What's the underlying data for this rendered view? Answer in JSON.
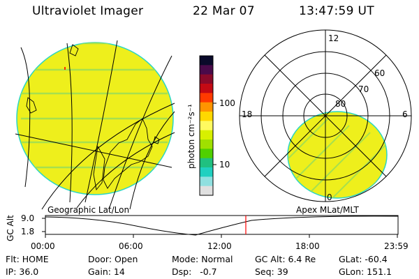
{
  "header": {
    "instrument": "Ultraviolet Imager",
    "date": "22 Mar 07",
    "time": "13:47:59 UT"
  },
  "colorbar": {
    "unit_label": "photon cm⁻²s⁻¹",
    "tick_labels": [
      "100",
      "10"
    ],
    "colors": [
      "#0a0a2a",
      "#4a0a4a",
      "#8a0a2a",
      "#c40a14",
      "#ff3a00",
      "#ff9400",
      "#ffd800",
      "#fffa60",
      "#d8f000",
      "#a0e000",
      "#50d000",
      "#20c080",
      "#20d0c0",
      "#90e0e0",
      "#e0e0e0"
    ]
  },
  "geo_map": {
    "fill_color": "#eeef1c",
    "limb_color": "#2ad6c4",
    "stripe_color": "#a6e04e"
  },
  "polar_plot": {
    "mlt_labels": [
      "12",
      "18",
      "6",
      "0"
    ],
    "lat_labels": [
      "60",
      "70",
      "80"
    ]
  },
  "timeline": {
    "left_title": "Geographic Lat/Lon",
    "right_title": "Apex MLat/MLT",
    "y_axis_label": "GC Alt",
    "y_ticks": [
      "9.0",
      "1.8"
    ],
    "x_ticks": [
      "00:00",
      "06:00",
      "12:00",
      "18:00",
      "23:59"
    ],
    "marker_color": "#ff0000"
  },
  "info": {
    "row1": [
      "Flt: HOME",
      "Door: Open",
      "Mode: Normal",
      "GC Alt: 6.4 Re",
      "GLat: -60.4"
    ],
    "row2": [
      "IP: 36.0",
      "Gain: 14",
      "Dsp:   -0.7",
      "Seq: 39",
      "GLon: 151.1"
    ]
  }
}
